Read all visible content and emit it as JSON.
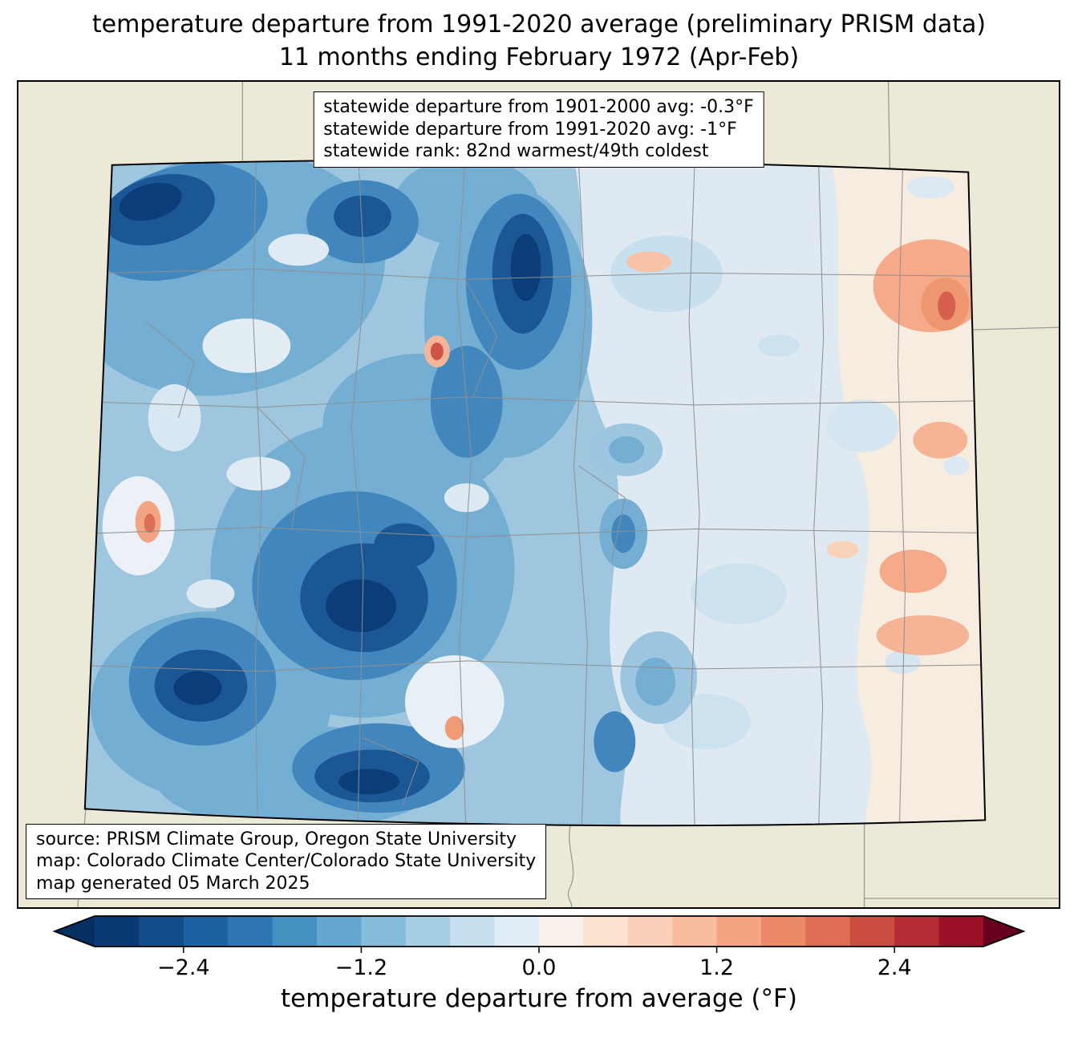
{
  "title": {
    "line1": "temperature departure from 1991-2020 average (preliminary PRISM data)",
    "line2": "11 months ending February 1972 (Apr-Feb)"
  },
  "stats_box": {
    "lines": [
      "statewide departure from 1901-2000 avg: -0.3°F",
      "statewide departure from 1991-2020 avg: -1°F",
      "statewide rank: 82nd warmest/49th coldest"
    ]
  },
  "source_box": {
    "lines": [
      "source: PRISM Climate Group, Oregon State University",
      "map: Colorado Climate Center/Colorado State University",
      "map generated 05 March 2025"
    ]
  },
  "colorbar": {
    "label": "temperature departure from average (°F)",
    "tick_labels": [
      "−2.4",
      "−1.2",
      "0.0",
      "1.2",
      "2.4"
    ],
    "tick_values": [
      -2.4,
      -1.2,
      0,
      1.2,
      2.4
    ],
    "range": [
      -3,
      3
    ],
    "segment_colors": [
      "#0a3a74",
      "#134e8a",
      "#1d62a0",
      "#2e76b2",
      "#4490c1",
      "#63a6ce",
      "#85bcda",
      "#a7cfe4",
      "#c6dfee",
      "#e1ecf4",
      "#f8f0ea",
      "#fce2d1",
      "#fbd0b9",
      "#f8bc9f",
      "#f3a481",
      "#ea8a68",
      "#dd6d53",
      "#cc4c42",
      "#b52b33",
      "#9a1127"
    ],
    "arrow_left_color": "#053061",
    "arrow_right_color": "#67001f"
  },
  "chart_data": {
    "type": "choropleth-map",
    "region": "Colorado",
    "variable": "temperature departure from average (°F)",
    "baseline": "1991-2020 average",
    "period": "11 months ending February 1972 (Apr-Feb)",
    "data_source": "preliminary PRISM data",
    "statewide_departure_from_1901_2000_avg_F": -0.3,
    "statewide_departure_from_1991_2020_avg_F": -1,
    "statewide_rank": "82nd warmest/49th coldest",
    "colorbar_range_F": [
      -3,
      3
    ],
    "colorbar_ticks_F": [
      -2.4,
      -1.2,
      0,
      1.2,
      2.4
    ],
    "map_generated": "05 March 2025",
    "spatial_pattern": "strong cold anomalies (−1.5 to −3°F) over western and central mountain Colorado; near-normal to slightly warm (+0.5 to +1.5°F) over far eastern plains"
  }
}
